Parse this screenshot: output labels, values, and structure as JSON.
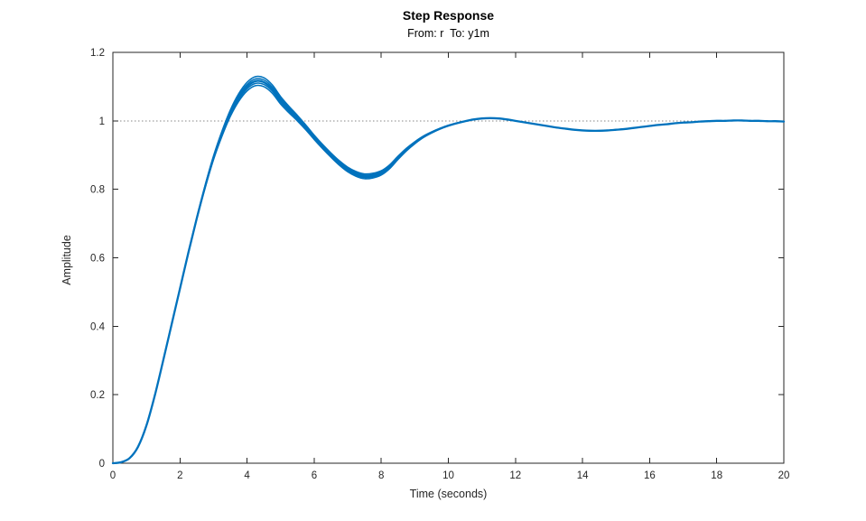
{
  "chart_data": {
    "type": "line",
    "title": "Step Response",
    "subtitle": "From: r  To: y1m",
    "xlabel": "Time (seconds)",
    "ylabel": "Amplitude",
    "xlim": [
      0,
      20
    ],
    "ylim": [
      0,
      1.2
    ],
    "x_ticks": [
      0,
      2,
      4,
      6,
      8,
      10,
      12,
      14,
      16,
      18,
      20
    ],
    "x_tick_labels": [
      "0",
      "2",
      "4",
      "6",
      "8",
      "10",
      "12",
      "14",
      "16",
      "18",
      "20"
    ],
    "y_ticks": [
      0,
      0.2,
      0.4,
      0.6,
      0.8,
      1,
      1.2
    ],
    "y_tick_labels": [
      "0",
      "0.2",
      "0.4",
      "0.6",
      "0.8",
      "1",
      "1.2"
    ],
    "grid": false,
    "reference_line_y": 1.0,
    "series": [
      {
        "name": "y1m",
        "t_start": 0,
        "t_step": 0.25,
        "values": [
          0.0,
          0.003,
          0.015,
          0.048,
          0.11,
          0.198,
          0.3,
          0.405,
          0.51,
          0.615,
          0.715,
          0.808,
          0.892,
          0.962,
          1.022,
          1.068,
          1.1,
          1.116,
          1.113,
          1.093,
          1.06,
          1.033,
          1.008,
          0.981,
          0.952,
          0.925,
          0.9,
          0.877,
          0.858,
          0.845,
          0.838,
          0.84,
          0.848,
          0.866,
          0.892,
          0.916,
          0.936,
          0.953,
          0.966,
          0.977,
          0.986,
          0.993,
          0.999,
          1.004,
          1.007,
          1.008,
          1.007,
          1.004,
          1.0,
          0.996,
          0.992,
          0.988,
          0.984,
          0.98,
          0.977,
          0.974,
          0.972,
          0.971,
          0.971,
          0.972,
          0.974,
          0.976,
          0.979,
          0.982,
          0.985,
          0.988,
          0.99,
          0.993,
          0.995,
          0.996,
          0.998,
          0.999,
          1.0,
          1.0,
          1.001,
          1.001,
          1.0,
          1.0,
          0.999,
          0.999,
          0.998
        ]
      }
    ],
    "ensemble_band": {
      "offsets": [
        -1,
        -0.5,
        0.5,
        1
      ],
      "bumps": [
        {
          "center": 4.3,
          "sigma": 1.0,
          "amplitude": 0.013
        },
        {
          "center": 7.45,
          "sigma": 1.2,
          "amplitude": 0.007
        }
      ]
    },
    "colors": {
      "curve": "#0072bd",
      "axes": "#262626",
      "reference_line": "#878787",
      "background": "#ffffff"
    }
  }
}
